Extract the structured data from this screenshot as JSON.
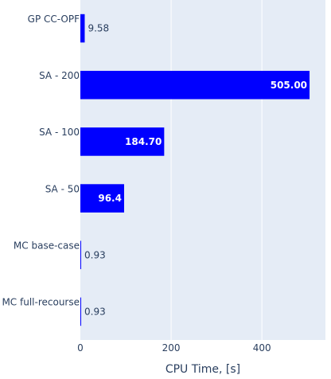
{
  "chart_data": {
    "type": "bar",
    "orientation": "horizontal",
    "categories": [
      "GP CC-OPF",
      "SA - 200",
      "SA - 100",
      "SA - 50",
      "MC base-case",
      "MC full-recourse"
    ],
    "values": [
      9.58,
      505.0,
      184.7,
      96.4,
      0.93,
      0.93
    ],
    "value_labels": [
      "9.58",
      "505.00",
      "184.70",
      "96.4",
      "0.93",
      "0.93"
    ],
    "xlabel": "CPU Time, [s]",
    "ylabel": "",
    "xlim": [
      0,
      540
    ],
    "xticks": [
      "0",
      "200",
      "400"
    ],
    "grid": true,
    "bar_color": "#0000ff",
    "plot_bg": "#e5ecf6"
  }
}
